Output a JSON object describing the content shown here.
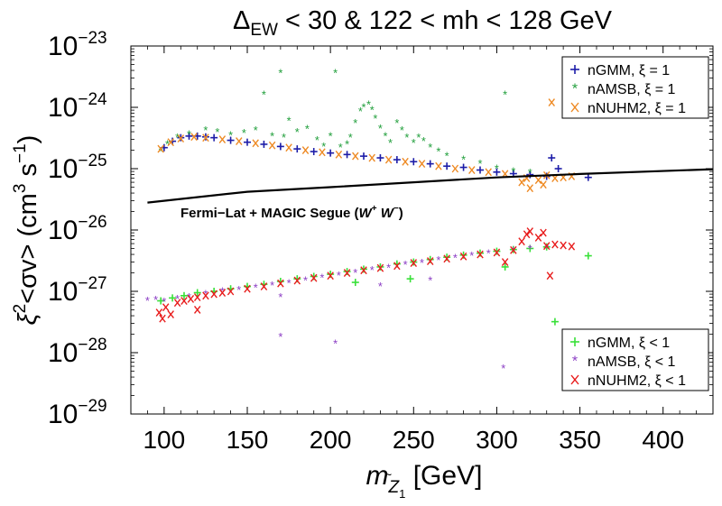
{
  "chart_data": {
    "type": "scatter",
    "title": {
      "delta": "Δ",
      "delta_sub": "EW",
      "rest": " < 30 & 122 < mh < 128 GeV"
    },
    "xlabel": {
      "m": "m",
      "sub": "Z",
      "sub_tilde": "~",
      "sub_index": "1",
      "unit": " [GeV]"
    },
    "ylabel": {
      "xi": "ξ",
      "xi_sup": "2",
      "sigv": "<σv> (cm",
      "cm_sup": "3",
      "s": " s",
      "s_sup": "−1",
      "close": ")"
    },
    "xlim": [
      80,
      430
    ],
    "ylim_log10": [
      -29,
      -23
    ],
    "xticks": [
      "100",
      "150",
      "200",
      "250",
      "300",
      "350",
      "400"
    ],
    "xtick_values": [
      100,
      150,
      200,
      250,
      300,
      350,
      400
    ],
    "ytick_exponents": [
      -29,
      -28,
      -27,
      -26,
      -25,
      -24,
      -23
    ],
    "ytick_base": "10",
    "ytick_labels": [
      "−29",
      "−28",
      "−27",
      "−26",
      "−25",
      "−24",
      "−23"
    ],
    "constraint": {
      "label_main": "Fermi−Lat + MAGIC Segue (",
      "label_w": "W",
      "label_plus": "+",
      "label_w2": " W",
      "label_minus": "−",
      "label_close": ")",
      "points": [
        [
          90,
          2.8e-26
        ],
        [
          150,
          4.2e-26
        ],
        [
          200,
          5e-26
        ],
        [
          250,
          6e-26
        ],
        [
          300,
          7.2e-26
        ],
        [
          350,
          8.2e-26
        ],
        [
          430,
          9.8e-26
        ]
      ],
      "color": "#000000"
    },
    "legend_upper": {
      "placement": "top-right",
      "entries": [
        {
          "marker": "+",
          "color": "#1c1ca8",
          "label": "nGMM, ξ = 1"
        },
        {
          "marker": "*",
          "color": "#1f9e3a",
          "label": "nAMSB, ξ = 1"
        },
        {
          "marker": "x",
          "color": "#ee8a24",
          "label": "nNUHM2, ξ = 1"
        }
      ]
    },
    "legend_lower": {
      "placement": "bottom-right",
      "entries": [
        {
          "marker": "+",
          "color": "#38e038",
          "label": "nGMM, ξ < 1"
        },
        {
          "marker": "*",
          "color": "#8a3cc4",
          "label": "nAMSB, ξ < 1"
        },
        {
          "marker": "x",
          "color": "#e81c1c",
          "label": "nNUHM2, ξ < 1"
        }
      ]
    },
    "series": [
      {
        "name": "nGMM, ξ = 1",
        "marker": "+",
        "color": "#1c1ca8",
        "points": [
          [
            100,
            2.2e-25
          ],
          [
            105,
            2.8e-25
          ],
          [
            110,
            3.2e-25
          ],
          [
            115,
            3.4e-25
          ],
          [
            120,
            3.4e-25
          ],
          [
            125,
            3.3e-25
          ],
          [
            130,
            3.2e-25
          ],
          [
            140,
            2.9e-25
          ],
          [
            150,
            2.7e-25
          ],
          [
            160,
            2.5e-25
          ],
          [
            170,
            2.3e-25
          ],
          [
            180,
            2.1e-25
          ],
          [
            190,
            1.9e-25
          ],
          [
            200,
            1.8e-25
          ],
          [
            210,
            1.7e-25
          ],
          [
            220,
            1.6e-25
          ],
          [
            230,
            1.5e-25
          ],
          [
            240,
            1.4e-25
          ],
          [
            250,
            1.3e-25
          ],
          [
            260,
            1.2e-25
          ],
          [
            270,
            1.1e-25
          ],
          [
            280,
            1.05e-25
          ],
          [
            290,
            9.5e-26
          ],
          [
            300,
            8.8e-26
          ],
          [
            310,
            8.3e-26
          ],
          [
            320,
            8e-26
          ],
          [
            330,
            7.5e-26
          ],
          [
            333,
            1.5e-25
          ],
          [
            337,
            1e-25
          ],
          [
            355,
            7.2e-26
          ]
        ]
      },
      {
        "name": "nAMSB, ξ = 1",
        "marker": "*",
        "color": "#1f9e3a",
        "points": [
          [
            98,
            1.9e-25
          ],
          [
            102,
            2.5e-25
          ],
          [
            108,
            3.2e-25
          ],
          [
            115,
            3.6e-25
          ],
          [
            125,
            4.2e-25
          ],
          [
            132,
            3.9e-25
          ],
          [
            140,
            3.5e-25
          ],
          [
            148,
            3.8e-25
          ],
          [
            155,
            4.2e-25
          ],
          [
            165,
            3.4e-25
          ],
          [
            172,
            3.2e-25
          ],
          [
            180,
            3.9e-25
          ],
          [
            186,
            4.4e-25
          ],
          [
            192,
            2.9e-25
          ],
          [
            196,
            2.3e-25
          ],
          [
            200,
            3.4e-25
          ],
          [
            203,
            3.6e-24
          ],
          [
            206,
            2.2e-25
          ],
          [
            210,
            2.5e-25
          ],
          [
            212,
            3.2e-25
          ],
          [
            215,
            5.5e-25
          ],
          [
            218,
            8.5e-25
          ],
          [
            220,
            1e-24
          ],
          [
            223,
            1.1e-24
          ],
          [
            225,
            9e-25
          ],
          [
            227,
            6.5e-25
          ],
          [
            230,
            4.5e-25
          ],
          [
            233,
            3.4e-25
          ],
          [
            236,
            2.6e-25
          ],
          [
            240,
            5.5e-25
          ],
          [
            243,
            4.2e-25
          ],
          [
            246,
            3.2e-25
          ],
          [
            250,
            2.6e-25
          ],
          [
            253,
            3.2e-25
          ],
          [
            256,
            2.8e-25
          ],
          [
            260,
            2.2e-25
          ],
          [
            265,
            1.9e-25
          ],
          [
            270,
            1.6e-25
          ],
          [
            280,
            1.4e-25
          ],
          [
            290,
            1.2e-25
          ],
          [
            300,
            1e-25
          ],
          [
            305,
            1.6e-24
          ],
          [
            310,
            9e-26
          ],
          [
            320,
            8.5e-26
          ],
          [
            160,
            1.6e-24
          ],
          [
            175,
            6e-25
          ],
          [
            170,
            3.6e-24
          ]
        ]
      },
      {
        "name": "nNUHM2, ξ = 1",
        "marker": "x",
        "color": "#ee8a24",
        "points": [
          [
            98,
            2.1e-25
          ],
          [
            104,
            2.7e-25
          ],
          [
            110,
            3.1e-25
          ],
          [
            118,
            3.3e-25
          ],
          [
            125,
            3.2e-25
          ],
          [
            135,
            3e-25
          ],
          [
            145,
            2.8e-25
          ],
          [
            155,
            2.6e-25
          ],
          [
            165,
            2.4e-25
          ],
          [
            175,
            2.2e-25
          ],
          [
            185,
            2e-25
          ],
          [
            195,
            1.85e-25
          ],
          [
            205,
            1.7e-25
          ],
          [
            215,
            1.6e-25
          ],
          [
            225,
            1.5e-25
          ],
          [
            235,
            1.4e-25
          ],
          [
            245,
            1.3e-25
          ],
          [
            255,
            1.2e-25
          ],
          [
            265,
            1.1e-25
          ],
          [
            275,
            1e-25
          ],
          [
            285,
            9.5e-26
          ],
          [
            295,
            8.8e-26
          ],
          [
            305,
            8.2e-26
          ],
          [
            315,
            6e-26
          ],
          [
            318,
            7e-26
          ],
          [
            320,
            4.8e-26
          ],
          [
            325,
            6.5e-26
          ],
          [
            328,
            5.5e-26
          ],
          [
            330,
            7.8e-26
          ],
          [
            335,
            7e-26
          ],
          [
            340,
            7.2e-26
          ],
          [
            345,
            7.5e-26
          ],
          [
            333,
            1.2e-24
          ]
        ]
      },
      {
        "name": "nGMM, ξ < 1",
        "marker": "+",
        "color": "#38e038",
        "points": [
          [
            98,
            7e-28
          ],
          [
            105,
            7.8e-28
          ],
          [
            112,
            8.5e-28
          ],
          [
            120,
            9.5e-28
          ],
          [
            130,
            1e-27
          ],
          [
            140,
            1.1e-27
          ],
          [
            150,
            1.2e-27
          ],
          [
            160,
            1.3e-27
          ],
          [
            170,
            1.45e-27
          ],
          [
            180,
            1.6e-27
          ],
          [
            190,
            1.75e-27
          ],
          [
            200,
            1.9e-27
          ],
          [
            210,
            2.1e-27
          ],
          [
            220,
            2.3e-27
          ],
          [
            230,
            2.5e-27
          ],
          [
            240,
            2.8e-27
          ],
          [
            250,
            3e-27
          ],
          [
            260,
            3.3e-27
          ],
          [
            270,
            3.6e-27
          ],
          [
            280,
            3.9e-27
          ],
          [
            290,
            4.2e-27
          ],
          [
            300,
            4.5e-27
          ],
          [
            310,
            4.8e-27
          ],
          [
            320,
            5e-27
          ],
          [
            330,
            5.3e-27
          ],
          [
            335,
            3.2e-28
          ],
          [
            355,
            3.8e-27
          ],
          [
            305,
            2.5e-27
          ],
          [
            248,
            1.6e-27
          ],
          [
            215,
            1.4e-27
          ]
        ]
      },
      {
        "name": "nAMSB, ξ < 1",
        "marker": "*",
        "color": "#8a3cc4",
        "points": [
          [
            90,
            7e-28
          ],
          [
            95,
            7.2e-28
          ],
          [
            100,
            6.8e-28
          ],
          [
            108,
            7.5e-28
          ],
          [
            115,
            8e-28
          ],
          [
            125,
            9e-28
          ],
          [
            135,
            1e-27
          ],
          [
            145,
            1.05e-27
          ],
          [
            155,
            1.15e-27
          ],
          [
            165,
            1.25e-27
          ],
          [
            170,
            1.8e-28
          ],
          [
            175,
            1.35e-27
          ],
          [
            185,
            1.5e-27
          ],
          [
            195,
            1.65e-27
          ],
          [
            203,
            1.4e-28
          ],
          [
            205,
            1.8e-27
          ],
          [
            215,
            2e-27
          ],
          [
            225,
            2.2e-27
          ],
          [
            235,
            2.4e-27
          ],
          [
            245,
            2.7e-27
          ],
          [
            255,
            2.9e-27
          ],
          [
            265,
            3.2e-27
          ],
          [
            275,
            3.5e-27
          ],
          [
            285,
            3.8e-27
          ],
          [
            295,
            4.1e-27
          ],
          [
            304,
            5.5e-29
          ],
          [
            310,
            4.6e-27
          ],
          [
            320,
            4.9e-27
          ],
          [
            330,
            5e-27
          ],
          [
            170,
            8e-28
          ],
          [
            230,
            1.2e-27
          ],
          [
            260,
            1.5e-27
          ]
        ]
      },
      {
        "name": "nNUHM2, ξ < 1",
        "marker": "x",
        "color": "#e81c1c",
        "points": [
          [
            97,
            4.5e-28
          ],
          [
            99,
            3.6e-28
          ],
          [
            101,
            5.5e-28
          ],
          [
            104,
            4.2e-28
          ],
          [
            108,
            6.5e-28
          ],
          [
            112,
            7e-28
          ],
          [
            116,
            7.5e-28
          ],
          [
            120,
            8e-28
          ],
          [
            125,
            8.5e-28
          ],
          [
            130,
            9e-28
          ],
          [
            135,
            9.5e-28
          ],
          [
            140,
            1e-27
          ],
          [
            150,
            1.1e-27
          ],
          [
            160,
            1.2e-27
          ],
          [
            170,
            1.35e-27
          ],
          [
            180,
            1.5e-27
          ],
          [
            190,
            1.65e-27
          ],
          [
            200,
            1.8e-27
          ],
          [
            210,
            2e-27
          ],
          [
            220,
            2.2e-27
          ],
          [
            230,
            2.4e-27
          ],
          [
            240,
            2.6e-27
          ],
          [
            250,
            2.9e-27
          ],
          [
            260,
            3.1e-27
          ],
          [
            270,
            3.4e-27
          ],
          [
            280,
            3.7e-27
          ],
          [
            290,
            4e-27
          ],
          [
            300,
            4.3e-27
          ],
          [
            310,
            4.7e-27
          ],
          [
            315,
            6.5e-27
          ],
          [
            318,
            8.5e-27
          ],
          [
            320,
            9.5e-27
          ],
          [
            325,
            7.5e-27
          ],
          [
            328,
            9e-27
          ],
          [
            330,
            5.5e-27
          ],
          [
            335,
            5.8e-27
          ],
          [
            340,
            5.6e-27
          ],
          [
            345,
            5.4e-27
          ],
          [
            332,
            1.8e-27
          ],
          [
            305,
            3e-27
          ],
          [
            120,
            5e-28
          ]
        ]
      }
    ]
  }
}
